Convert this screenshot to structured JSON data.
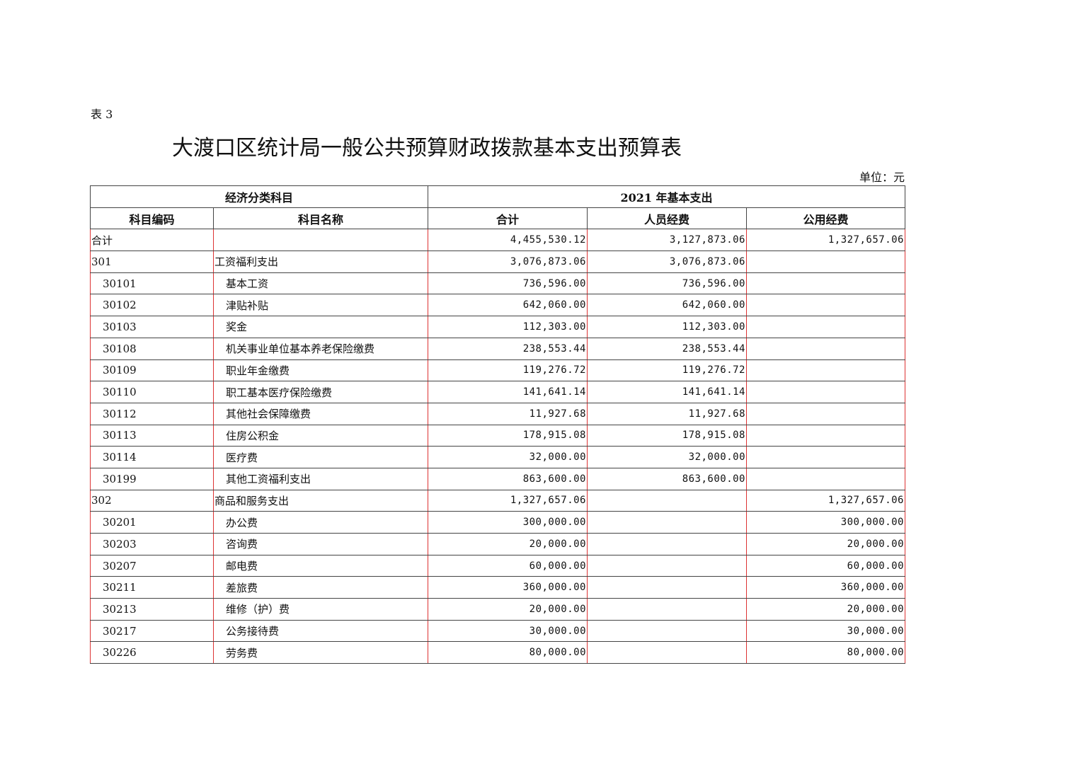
{
  "table_label": "表 3",
  "title": "大渡口区统计局一般公共预算财政拨款基本支出预算表",
  "unit": "单位：元",
  "header": {
    "group1": "经济分类科目",
    "group2": "2021 年基本支出",
    "columns": [
      "科目编码",
      "科目名称",
      "合计",
      "人员经费",
      "公用经费"
    ]
  },
  "rows": [
    {
      "code": "合计",
      "name": "",
      "total": "4,455,530.12",
      "personnel": "3,127,873.06",
      "public": "1,327,657.06",
      "level": 0
    },
    {
      "code": "301",
      "name": "工资福利支出",
      "total": "3,076,873.06",
      "personnel": "3,076,873.06",
      "public": "",
      "level": 0
    },
    {
      "code": "30101",
      "name": "基本工资",
      "total": "736,596.00",
      "personnel": "736,596.00",
      "public": "",
      "level": 1
    },
    {
      "code": "30102",
      "name": "津贴补贴",
      "total": "642,060.00",
      "personnel": "642,060.00",
      "public": "",
      "level": 1
    },
    {
      "code": "30103",
      "name": "奖金",
      "total": "112,303.00",
      "personnel": "112,303.00",
      "public": "",
      "level": 1
    },
    {
      "code": "30108",
      "name": "机关事业单位基本养老保险缴费",
      "total": "238,553.44",
      "personnel": "238,553.44",
      "public": "",
      "level": 1
    },
    {
      "code": "30109",
      "name": "职业年金缴费",
      "total": "119,276.72",
      "personnel": "119,276.72",
      "public": "",
      "level": 1
    },
    {
      "code": "30110",
      "name": "职工基本医疗保险缴费",
      "total": "141,641.14",
      "personnel": "141,641.14",
      "public": "",
      "level": 1
    },
    {
      "code": "30112",
      "name": "其他社会保障缴费",
      "total": "11,927.68",
      "personnel": "11,927.68",
      "public": "",
      "level": 1
    },
    {
      "code": "30113",
      "name": "住房公积金",
      "total": "178,915.08",
      "personnel": "178,915.08",
      "public": "",
      "level": 1
    },
    {
      "code": "30114",
      "name": "医疗费",
      "total": "32,000.00",
      "personnel": "32,000.00",
      "public": "",
      "level": 1
    },
    {
      "code": "30199",
      "name": "其他工资福利支出",
      "total": "863,600.00",
      "personnel": "863,600.00",
      "public": "",
      "level": 1
    },
    {
      "code": "302",
      "name": "商品和服务支出",
      "total": "1,327,657.06",
      "personnel": "",
      "public": "1,327,657.06",
      "level": 0
    },
    {
      "code": "30201",
      "name": "办公费",
      "total": "300,000.00",
      "personnel": "",
      "public": "300,000.00",
      "level": 1
    },
    {
      "code": "30203",
      "name": "咨询费",
      "total": "20,000.00",
      "personnel": "",
      "public": "20,000.00",
      "level": 1
    },
    {
      "code": "30207",
      "name": "邮电费",
      "total": "60,000.00",
      "personnel": "",
      "public": "60,000.00",
      "level": 1
    },
    {
      "code": "30211",
      "name": "差旅费",
      "total": "360,000.00",
      "personnel": "",
      "public": "360,000.00",
      "level": 1
    },
    {
      "code": "30213",
      "name": "维修（护）费",
      "total": "20,000.00",
      "personnel": "",
      "public": "20,000.00",
      "level": 1
    },
    {
      "code": "30217",
      "name": "公务接待费",
      "total": "30,000.00",
      "personnel": "",
      "public": "30,000.00",
      "level": 1
    },
    {
      "code": "30226",
      "name": "劳务费",
      "total": "80,000.00",
      "personnel": "",
      "public": "80,000.00",
      "level": 1
    }
  ]
}
